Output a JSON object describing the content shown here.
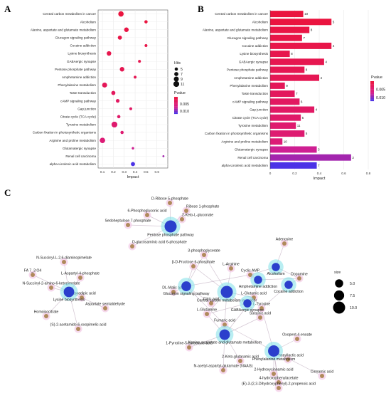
{
  "panel_labels": {
    "a": "A",
    "b": "B",
    "c": "C"
  },
  "chart_data": [
    {
      "type": "scatter",
      "panel": "A",
      "xlabel": "Impact",
      "xlim": [
        0.06,
        0.7
      ],
      "xticks": [
        0.1,
        0.2,
        0.3,
        0.4,
        0.5,
        0.6
      ],
      "grid": true,
      "categories": [
        "Central carbon metabolism in cancer",
        "Alcoholism",
        "Alanine, aspartate and glutamate metabolism",
        "Glucagon signaling pathway",
        "Cocaine addiction",
        "Lysine biosynthesis",
        "GABAergic synapse",
        "Pentose phosphate pathway",
        "Amphetamine addiction",
        "Phenylalanine metabolism",
        "Taste transduction",
        "cAMP signaling pathway",
        "Gap junction",
        "Citrate cycle (TCA cycle)",
        "Tyrosine metabolism",
        "Carbon fixation in photosynthetic organisms",
        "Arginine and proline metabolism",
        "Glutamatergic synapse",
        "Renal cell carcinoma",
        "alpha-Linolenic acid metabolism"
      ],
      "impact": [
        0.27,
        0.5,
        0.32,
        0.26,
        0.5,
        0.16,
        0.44,
        0.28,
        0.4,
        0.12,
        0.2,
        0.24,
        0.36,
        0.25,
        0.21,
        0.28,
        0.1,
        0.38,
        0.66,
        0.38
      ],
      "hits": [
        10,
        5,
        8,
        7,
        4,
        8,
        4,
        8,
        4,
        9,
        7,
        6,
        4,
        5,
        11,
        5,
        10,
        3,
        2,
        7
      ],
      "pvalue": [
        0.0002,
        0.0003,
        0.0008,
        0.001,
        0.0012,
        0.0015,
        0.0018,
        0.002,
        0.0022,
        0.0025,
        0.003,
        0.0033,
        0.0036,
        0.004,
        0.0045,
        0.0048,
        0.0052,
        0.0075,
        0.009,
        0.012
      ],
      "legend_hits": {
        "title": "Hits",
        "values": [
          5,
          7,
          9,
          11
        ]
      },
      "legend_pvalue": {
        "title": "Pvalue",
        "ticks": [
          "0.005",
          "0.010"
        ],
        "range": [
          0.0,
          0.012
        ]
      }
    },
    {
      "type": "bar",
      "panel": "B",
      "xlabel": "Impact",
      "xlim": [
        0.0,
        0.8
      ],
      "xticks": [
        0.0,
        0.2,
        0.4,
        0.6,
        0.8
      ],
      "grid": true,
      "categories": [
        "Central carbon metabolism in cancer",
        "Alcoholism",
        "Alanine, aspartate and glutamate metabolism",
        "Glucagon signaling pathway",
        "Cocaine addiction",
        "Lysine biosynthesis",
        "GABAergic synapse",
        "Pentose phosphate pathway",
        "Amphetamine addiction",
        "Phenylalanine metabolism",
        "Taste transduction",
        "cAMP signaling pathway",
        "Gap junction",
        "Citrate cycle (TCA cycle)",
        "Tyrosine metabolism",
        "Carbon fixation in photosynthetic organisms",
        "Arginine and proline metabolism",
        "Glutamatergic synapse",
        "Renal cell carcinoma",
        "alpha-Linolenic acid metabolism"
      ],
      "values": [
        0.27,
        0.5,
        0.32,
        0.26,
        0.5,
        0.16,
        0.44,
        0.28,
        0.4,
        0.12,
        0.2,
        0.24,
        0.36,
        0.25,
        0.21,
        0.28,
        0.1,
        0.38,
        0.66,
        0.38
      ],
      "labels": [
        "10",
        "5",
        "8",
        "7",
        "4",
        "8",
        "4",
        "8",
        "4",
        "9",
        "7",
        "6",
        "4",
        "5",
        "11",
        "5",
        "10",
        "3",
        "2",
        "7"
      ],
      "pvalue": [
        0.0002,
        0.0003,
        0.0008,
        0.001,
        0.0012,
        0.0015,
        0.0018,
        0.002,
        0.0022,
        0.0025,
        0.003,
        0.0033,
        0.0036,
        0.004,
        0.0045,
        0.0048,
        0.0052,
        0.0075,
        0.009,
        0.012
      ],
      "legend_pvalue": {
        "title": "Pvalue",
        "ticks": [
          "0.005",
          "0.010"
        ],
        "range": [
          0.0,
          0.012
        ]
      }
    },
    {
      "type": "network",
      "panel": "C",
      "legend_size": {
        "title": "size",
        "values": [
          "5.0",
          "7.5",
          "10.0"
        ]
      },
      "colors": {
        "pathway": "#2b3fcc",
        "metabolite": "#b08a5c",
        "halo_pathway": "#7fe0e8",
        "halo_metab": "#f2c9e6",
        "edge": "#c9b8c8"
      },
      "pathways": [
        {
          "id": "ppp",
          "label": "Pentose phosphate pathway",
          "size": 10
        },
        {
          "id": "lys",
          "label": "Lysine biosynthesis",
          "size": 8
        },
        {
          "id": "glu",
          "label": "Glucagon signaling pathway",
          "size": 7
        },
        {
          "id": "cc",
          "label": "Central carbon metabolism in cancer",
          "size": 10
        },
        {
          "id": "gaba",
          "label": "GABAergic synapse",
          "size": 5
        },
        {
          "id": "alc",
          "label": "Alcoholism",
          "size": 5
        },
        {
          "id": "amph",
          "label": "Amphetamine addiction",
          "size": 5
        },
        {
          "id": "coc",
          "label": "Cocaine addiction",
          "size": 5
        },
        {
          "id": "ala",
          "label": "Alanine, aspartate and glutamate metabolism",
          "size": 8
        },
        {
          "id": "phe",
          "label": "Phenylalanine metabolism",
          "size": 9
        }
      ],
      "metabolites": [
        {
          "id": "m1",
          "label": "D-Ribose 5-phosphate"
        },
        {
          "id": "m2",
          "label": "Ribose 1-phosphate"
        },
        {
          "id": "m3",
          "label": "6-Phosphogluconic acid"
        },
        {
          "id": "m4",
          "label": "2-Keto-L-gluconate"
        },
        {
          "id": "m5",
          "label": "Sedoheptulose 7-phosphate"
        },
        {
          "id": "m6",
          "label": "D-glucosaminic acid 6-phosphate"
        },
        {
          "id": "m7",
          "label": "Adenosine"
        },
        {
          "id": "m8",
          "label": "3-phosphoglycerate"
        },
        {
          "id": "m9",
          "label": "β-D-Fructose 6-phosphate"
        },
        {
          "id": "m10",
          "label": "L-Arginine"
        },
        {
          "id": "m11",
          "label": "Cyclic AMP"
        },
        {
          "id": "m12",
          "label": "Dopamine"
        },
        {
          "id": "m13",
          "label": "N-Succinyl-L-2,6-diaminopimelate"
        },
        {
          "id": "m14",
          "label": "FA 7_3:O4"
        },
        {
          "id": "m15",
          "label": "L-Aspartyl-4-phosphate"
        },
        {
          "id": "m16",
          "label": "Aminoadipic acid"
        },
        {
          "id": "m17",
          "label": "Aspartate semialdehyde"
        },
        {
          "id": "m18",
          "label": "Homoisocitrate"
        },
        {
          "id": "m19",
          "label": "(S)-2-acetamido-6-oxopimelic acid"
        },
        {
          "id": "m20",
          "label": "N-Succinyl-2-amino-6-ketopimelate"
        },
        {
          "id": "m21",
          "label": "DL-Malic acid"
        },
        {
          "id": "m22",
          "label": "L-Glutamic acid"
        },
        {
          "id": "m23",
          "label": "Citric acid"
        },
        {
          "id": "m24",
          "label": "L-Tyrosine"
        },
        {
          "id": "m25",
          "label": "L-Glutamine"
        },
        {
          "id": "m26",
          "label": "Succinic acid"
        },
        {
          "id": "m27",
          "label": "Fumaric acid"
        },
        {
          "id": "m28",
          "label": "Oxopent-4-enoate"
        },
        {
          "id": "m29",
          "label": "1-Pyrroline-5-carboxylic acid"
        },
        {
          "id": "m30",
          "label": "D-Phenyllactic acid"
        },
        {
          "id": "m31",
          "label": "2-Keto-glutaramic acid"
        },
        {
          "id": "m32",
          "label": "N-acetyl-aspartyl-glutamate (NAAG)"
        },
        {
          "id": "m33",
          "label": "2-Hydroxycinnamic acid"
        },
        {
          "id": "m34",
          "label": "Cinnamic acid"
        },
        {
          "id": "m35",
          "label": "4-hydroxyphenylacetate"
        },
        {
          "id": "m36",
          "label": "(E)-3-(2,3-Dihydroxyphenyl)-2-propenoic acid"
        }
      ]
    }
  ]
}
